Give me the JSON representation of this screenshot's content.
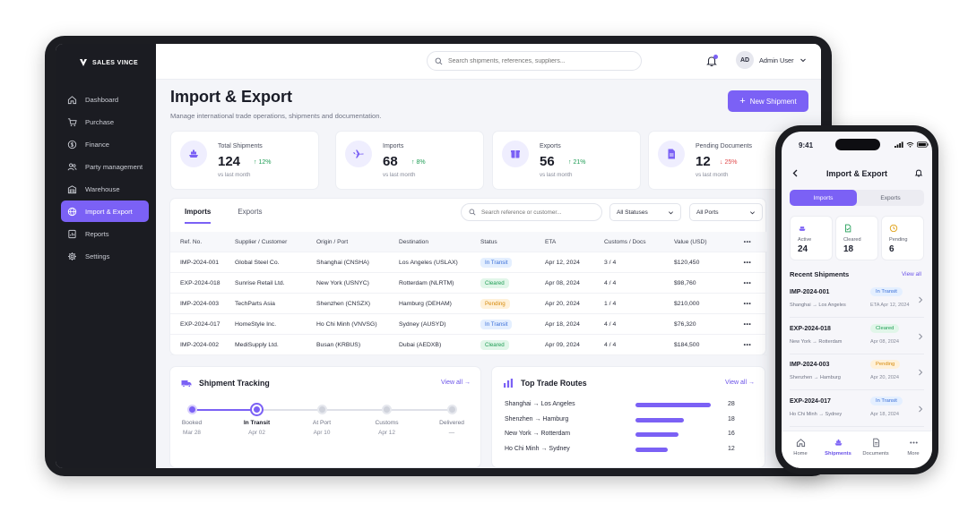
{
  "brand": "SALES VINCE",
  "sidebar": {
    "items": [
      {
        "label": "Dashboard",
        "icon": "home-icon"
      },
      {
        "label": "Purchase",
        "icon": "cart-icon"
      },
      {
        "label": "Finance",
        "icon": "dollar-icon"
      },
      {
        "label": "Party management",
        "icon": "users-icon"
      },
      {
        "label": "Warehouse",
        "icon": "warehouse-icon"
      },
      {
        "label": "Import & Export",
        "icon": "globe-icon",
        "active": true
      },
      {
        "label": "Reports",
        "icon": "report-icon"
      },
      {
        "label": "Settings",
        "icon": "gear-icon"
      }
    ]
  },
  "topbar": {
    "search_placeholder": "Search shipments, references, suppliers...",
    "avatar_initials": "AD",
    "user_name": "Admin User"
  },
  "page": {
    "title": "Import & Export",
    "subtitle": "Manage international trade operations, shipments and documentation.",
    "new_button": "New Shipment"
  },
  "stats": [
    {
      "label": "Total Shipments",
      "value": "124",
      "change": "↑ 12%",
      "trend": "up",
      "note": "vs last month",
      "icon": "ship-icon"
    },
    {
      "label": "Imports",
      "value": "68",
      "change": "↑ 8%",
      "trend": "up",
      "note": "vs last month",
      "icon": "plane-icon"
    },
    {
      "label": "Exports",
      "value": "56",
      "change": "↑ 21%",
      "trend": "up",
      "note": "vs last month",
      "icon": "package-icon"
    },
    {
      "label": "Pending Documents",
      "value": "12",
      "change": "↓ 25%",
      "trend": "down",
      "note": "vs last month",
      "icon": "document-icon"
    }
  ],
  "table": {
    "tabs": [
      "Imports",
      "Exports"
    ],
    "search_placeholder": "Search reference or customer...",
    "status_filter": "All Statuses",
    "port_filter": "All Ports",
    "columns": [
      "Ref. No.",
      "Supplier / Customer",
      "Origin / Port",
      "Destination",
      "Status",
      "ETA",
      "Customs / Docs",
      "Value (USD)",
      "•••"
    ],
    "rows": [
      {
        "ref": "IMP-2024-001",
        "party": "Global Steel Co.",
        "origin": "Shanghai (CNSHA)",
        "dest": "Los Angeles (USLAX)",
        "status": "In Transit",
        "status_type": "transit",
        "eta": "Apr 12, 2024",
        "docs": "3 / 4",
        "value": "$120,450",
        "more": "•••"
      },
      {
        "ref": "EXP-2024-018",
        "party": "Sunrise Retail Ltd.",
        "origin": "New York (USNYC)",
        "dest": "Rotterdam (NLRTM)",
        "status": "Cleared",
        "status_type": "cleared",
        "eta": "Apr 08, 2024",
        "docs": "4 / 4",
        "value": "$98,760",
        "more": "•••"
      },
      {
        "ref": "IMP-2024-003",
        "party": "TechParts Asia",
        "origin": "Shenzhen (CNSZX)",
        "dest": "Hamburg (DEHAM)",
        "status": "Pending",
        "status_type": "pending",
        "eta": "Apr 20, 2024",
        "docs": "1 / 4",
        "value": "$210,000",
        "more": "•••"
      },
      {
        "ref": "EXP-2024-017",
        "party": "HomeStyle Inc.",
        "origin": "Ho Chi Minh (VNVSG)",
        "dest": "Sydney (AUSYD)",
        "status": "In Transit",
        "status_type": "transit",
        "eta": "Apr 18, 2024",
        "docs": "4 / 4",
        "value": "$76,320",
        "more": "•••"
      },
      {
        "ref": "IMP-2024-002",
        "party": "MediSupply Ltd.",
        "origin": "Busan (KRBUS)",
        "dest": "Dubai (AEDXB)",
        "status": "Cleared",
        "status_type": "cleared",
        "eta": "Apr 09, 2024",
        "docs": "4 / 4",
        "value": "$184,500",
        "more": "•••"
      }
    ]
  },
  "tracking": {
    "title": "Shipment Tracking",
    "view_all": "View all →",
    "steps": [
      {
        "name": "Booked",
        "date": "Mar 28",
        "state": "done"
      },
      {
        "name": "In Transit",
        "date": "Apr 02",
        "state": "current"
      },
      {
        "name": "At Port",
        "date": "Apr 10",
        "state": "todo"
      },
      {
        "name": "Customs",
        "date": "Apr 12",
        "state": "todo"
      },
      {
        "name": "Delivered",
        "date": "—",
        "state": "todo"
      }
    ]
  },
  "routes": {
    "title": "Top Trade Routes",
    "view_all": "View all →",
    "max": 28,
    "items": [
      {
        "name": "Shanghai → Los Angeles",
        "count": 28
      },
      {
        "name": "Shenzhen → Hamburg",
        "count": 18
      },
      {
        "name": "New York → Rotterdam",
        "count": 16
      },
      {
        "name": "Ho Chi Minh → Sydney",
        "count": 12
      }
    ]
  },
  "phone": {
    "time": "9:41",
    "title": "Import & Export",
    "tabs": [
      "Imports",
      "Exports"
    ],
    "stats": [
      {
        "label": "Active",
        "value": "24",
        "icon": "ship-icon"
      },
      {
        "label": "Cleared",
        "value": "18",
        "icon": "document-check-icon"
      },
      {
        "label": "Pending",
        "value": "6",
        "icon": "clock-icon"
      }
    ],
    "section": "Recent Shipments",
    "view_all": "View all",
    "items": [
      {
        "ref": "IMP-2024-001",
        "route": "Shanghai → Los Angeles",
        "status": "In Transit",
        "status_type": "transit",
        "eta": "ETA Apr 12, 2024"
      },
      {
        "ref": "EXP-2024-018",
        "route": "New York → Rotterdam",
        "status": "Cleared",
        "status_type": "cleared",
        "eta": "Apr 08, 2024"
      },
      {
        "ref": "IMP-2024-003",
        "route": "Shenzhen → Hamburg",
        "status": "Pending",
        "status_type": "pending",
        "eta": "Apr 20, 2024"
      },
      {
        "ref": "EXP-2024-017",
        "route": "Ho Chi Minh → Sydney",
        "status": "In Transit",
        "status_type": "transit",
        "eta": "Apr 18, 2024"
      }
    ],
    "nav": [
      {
        "label": "Home",
        "icon": "home-icon"
      },
      {
        "label": "Shipments",
        "icon": "ship-icon",
        "active": true
      },
      {
        "label": "Documents",
        "icon": "document-icon"
      },
      {
        "label": "More",
        "icon": "more-icon"
      }
    ]
  },
  "colors": {
    "accent": "#7b61f5",
    "sidebar": "#1b1c22",
    "success": "#1f9d55",
    "danger": "#e0484a",
    "warning": "#d68a0c",
    "info": "#3a6fd8"
  }
}
